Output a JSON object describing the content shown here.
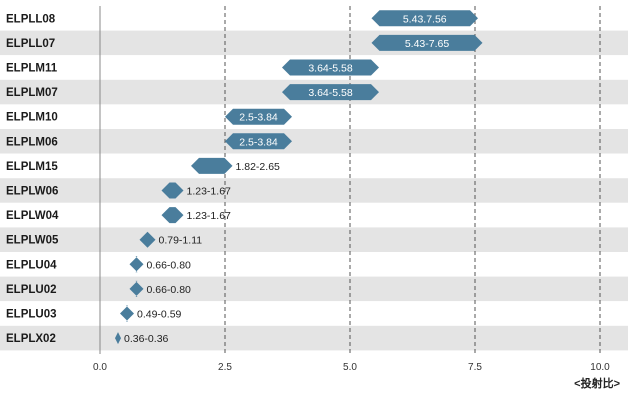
{
  "chart_data": {
    "type": "bar",
    "orientation": "horizontal-range",
    "categories": [
      "ELPLL08",
      "ELPLL07",
      "ELPLM11",
      "ELPLM07",
      "ELPLM10",
      "ELPLM06",
      "ELPLM15",
      "ELPLW06",
      "ELPLW04",
      "ELPLW05",
      "ELPLU04",
      "ELPLU02",
      "ELPLU03",
      "ELPLX02"
    ],
    "ranges": [
      [
        5.43,
        7.56
      ],
      [
        5.43,
        7.65
      ],
      [
        3.64,
        5.58
      ],
      [
        3.64,
        5.58
      ],
      [
        2.5,
        3.84
      ],
      [
        2.5,
        3.84
      ],
      [
        1.82,
        2.65
      ],
      [
        1.23,
        1.67
      ],
      [
        1.23,
        1.67
      ],
      [
        0.79,
        1.11
      ],
      [
        0.66,
        0.8
      ],
      [
        0.66,
        0.8
      ],
      [
        0.49,
        0.59
      ],
      [
        0.36,
        0.36
      ]
    ],
    "labels": [
      "5.43.7.56",
      "5.43-7.65",
      "3.64-5.58",
      "3.64-5.58",
      "2.5-3.84",
      "2.5-3.84",
      "1.82-2.65",
      "1.23-1.67",
      "1.23-1.67",
      "0.79-1.11",
      "0.66-0.80",
      "0.66-0.80",
      "0.49-0.59",
      "0.36-0.36"
    ],
    "xticks": [
      "0.0",
      "2.5",
      "5.0",
      "7.5",
      "10.0"
    ],
    "xlim": [
      0,
      10
    ],
    "xlabel": "<投射比>",
    "bar_color": "#4a7d9c",
    "band_color": "#e4e4e4",
    "grid": "vertical dashed"
  }
}
